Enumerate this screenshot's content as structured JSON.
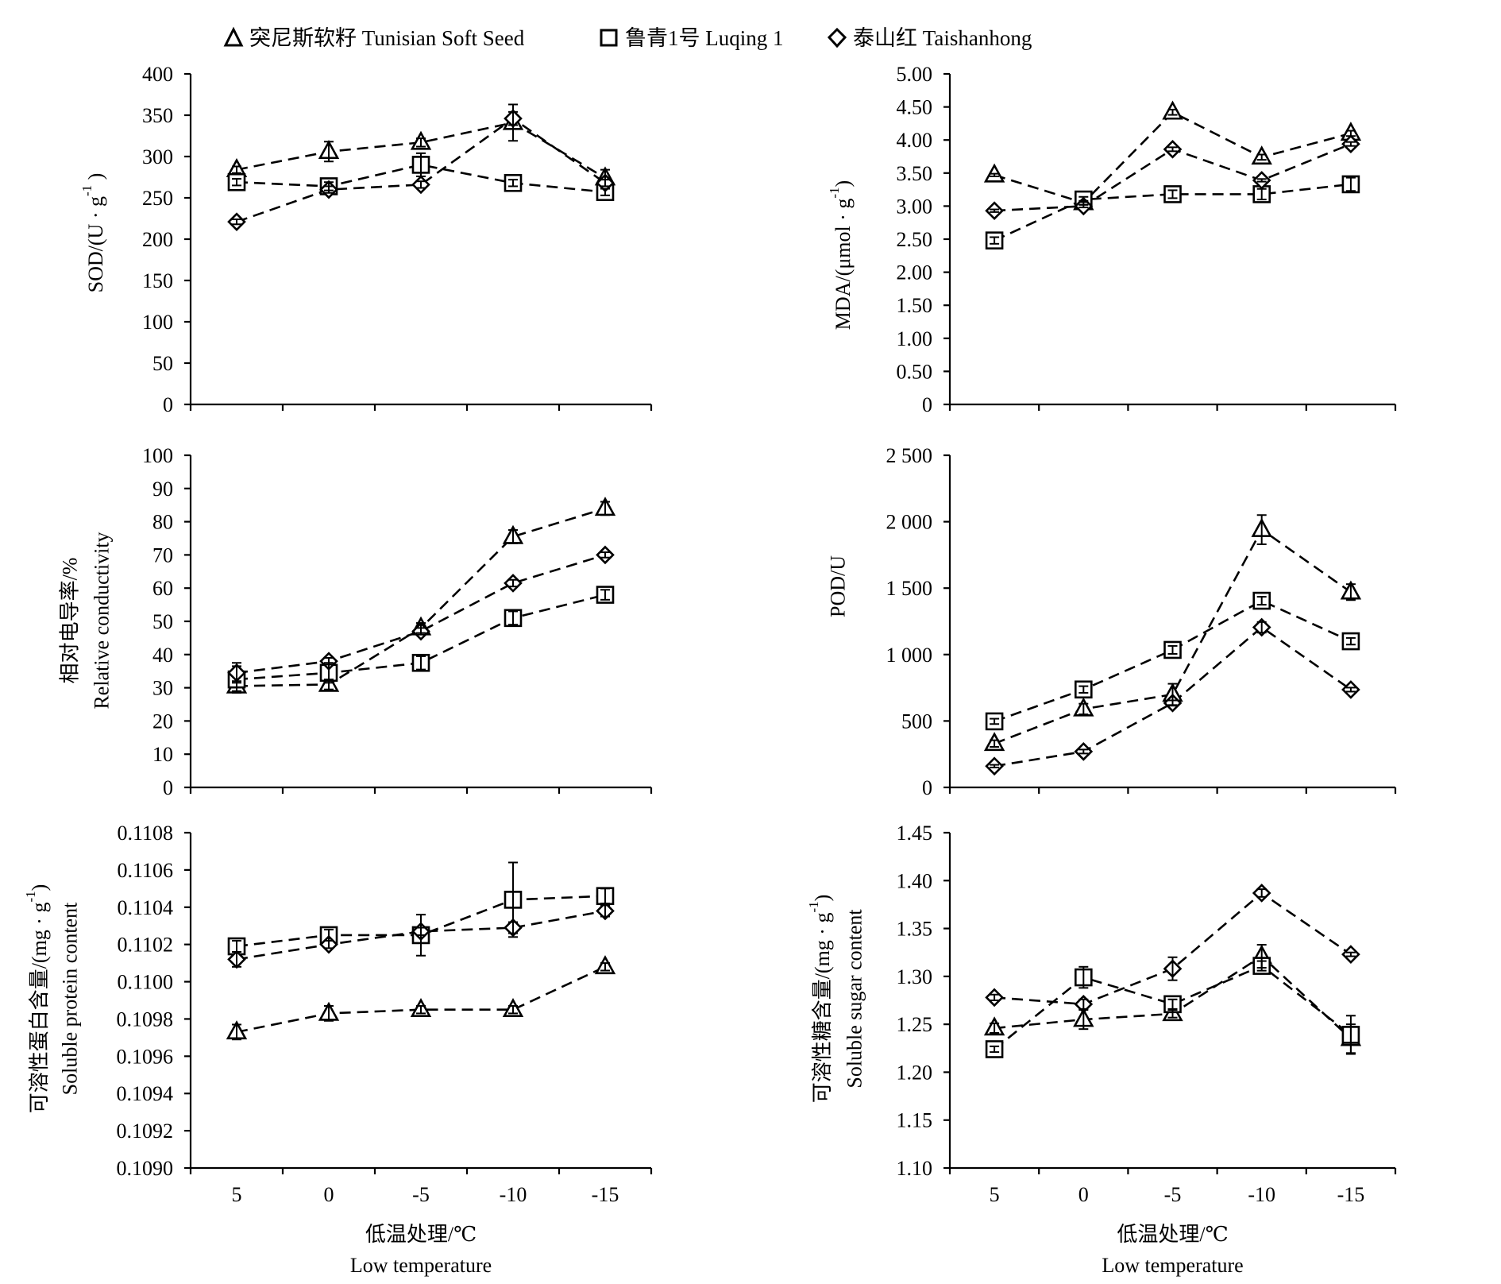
{
  "legend": {
    "position": "top",
    "items": [
      {
        "marker": "triangle",
        "name": "突尼斯软籽 Tunisian Soft Seed"
      },
      {
        "marker": "square",
        "name": "鲁青1号 Luqing 1"
      },
      {
        "marker": "diamond",
        "name": "泰山红 Taishanhong"
      }
    ]
  },
  "chart_data": [
    {
      "type": "line",
      "x": [
        5,
        0,
        -5,
        -10,
        -15
      ],
      "show_x_tick_labels": false,
      "ylabel": [
        {
          "text": "SOD/(U · g",
          "sup": "-1",
          "tail": " )"
        }
      ],
      "ylim": [
        0,
        400
      ],
      "yticks": [
        0,
        50,
        100,
        150,
        200,
        250,
        300,
        350,
        400
      ],
      "ytick_labels": [
        "0",
        "50",
        "100",
        "150",
        "200",
        "250",
        "300",
        "350",
        "400"
      ],
      "grid": false,
      "series": [
        {
          "marker": "triangle",
          "values": [
            284,
            306,
            317,
            341,
            274
          ],
          "errors": [
            4,
            12,
            5,
            22,
            10
          ]
        },
        {
          "marker": "square",
          "values": [
            269,
            264,
            290,
            268,
            257
          ],
          "errors": [
            4,
            5,
            14,
            4,
            4
          ]
        },
        {
          "marker": "diamond",
          "values": [
            221,
            260,
            266,
            346,
            268
          ],
          "errors": [
            3,
            4,
            4,
            8,
            4
          ]
        }
      ]
    },
    {
      "type": "line",
      "x": [
        5,
        0,
        -5,
        -10,
        -15
      ],
      "show_x_tick_labels": false,
      "ylabel": [
        {
          "text": "MDA/(μmol · g",
          "sup": "-1",
          "tail": ")"
        }
      ],
      "ylim": [
        0,
        5
      ],
      "yticks": [
        0,
        0.5,
        1,
        1.5,
        2,
        2.5,
        3,
        3.5,
        4,
        4.5,
        5
      ],
      "ytick_labels": [
        "0",
        "0.50",
        "1.00",
        "1.50",
        "2.00",
        "2.50",
        "3.00",
        "3.50",
        "4.00",
        "4.50",
        "5.00"
      ],
      "grid": false,
      "series": [
        {
          "marker": "triangle",
          "values": [
            3.47,
            3.05,
            4.42,
            3.74,
            4.1
          ],
          "errors": [
            0.02,
            0.03,
            0.04,
            0.04,
            0.04
          ]
        },
        {
          "marker": "square",
          "values": [
            2.48,
            3.1,
            3.18,
            3.18,
            3.33
          ],
          "errors": [
            0.05,
            0.04,
            0.06,
            0.08,
            0.1
          ]
        },
        {
          "marker": "diamond",
          "values": [
            2.93,
            3.0,
            3.86,
            3.39,
            3.94
          ],
          "errors": [
            0.02,
            0.02,
            0.03,
            0.02,
            0.03
          ]
        }
      ]
    },
    {
      "type": "line",
      "x": [
        5,
        0,
        -5,
        -10,
        -15
      ],
      "show_x_tick_labels": false,
      "ylabel": [
        "相对电导率/%",
        "Relative conductivity"
      ],
      "ylim": [
        0,
        100
      ],
      "yticks": [
        0,
        10,
        20,
        30,
        40,
        50,
        60,
        70,
        80,
        90,
        100
      ],
      "ytick_labels": [
        "0",
        "10",
        "20",
        "30",
        "40",
        "50",
        "60",
        "70",
        "80",
        "90",
        "100"
      ],
      "grid": false,
      "series": [
        {
          "marker": "triangle",
          "values": [
            30.5,
            31.0,
            48.0,
            75.5,
            84.0
          ],
          "errors": [
            1.5,
            1.5,
            1.5,
            2.0,
            2.0
          ]
        },
        {
          "marker": "square",
          "values": [
            32.5,
            34.5,
            37.5,
            51.0,
            58.0
          ],
          "errors": [
            4.0,
            3.0,
            2.0,
            2.0,
            1.5
          ]
        },
        {
          "marker": "diamond",
          "values": [
            34.5,
            38.0,
            47.0,
            61.5,
            70.0
          ],
          "errors": [
            3.0,
            1.0,
            1.0,
            1.0,
            0.8
          ]
        }
      ]
    },
    {
      "type": "line",
      "x": [
        5,
        0,
        -5,
        -10,
        -15
      ],
      "show_x_tick_labels": false,
      "ylabel": [
        "POD/U"
      ],
      "ylim": [
        0,
        2500
      ],
      "yticks": [
        0,
        500,
        1000,
        1500,
        2000,
        2500
      ],
      "ytick_labels": [
        "0",
        "500",
        "1 000",
        "1 500",
        "2 000",
        "2 500"
      ],
      "grid": false,
      "series": [
        {
          "marker": "triangle",
          "values": [
            330,
            590,
            700,
            1940,
            1470
          ],
          "errors": [
            25,
            40,
            80,
            110,
            60
          ]
        },
        {
          "marker": "square",
          "values": [
            497,
            737,
            1035,
            1405,
            1100
          ],
          "errors": [
            20,
            25,
            30,
            30,
            25
          ]
        },
        {
          "marker": "diamond",
          "values": [
            160,
            270,
            635,
            1205,
            736
          ],
          "errors": [
            10,
            15,
            20,
            40,
            15
          ]
        }
      ]
    },
    {
      "type": "line",
      "x": [
        5,
        0,
        -5,
        -10,
        -15
      ],
      "show_x_tick_labels": true,
      "xlabel": [
        "低温处理/℃",
        "Low temperature"
      ],
      "ylabel": [
        {
          "text": "可溶性蛋白含量/(mg · g",
          "sup": "-1",
          "tail": ")"
        },
        "Soluble protein content"
      ],
      "ylim": [
        0.109,
        0.1108
      ],
      "yticks": [
        0.109,
        0.1092,
        0.1094,
        0.1096,
        0.1098,
        0.11,
        0.1102,
        0.1104,
        0.1106,
        0.1108
      ],
      "ytick_labels": [
        "0.1090",
        "0.1092",
        "0.1094",
        "0.1096",
        "0.1098",
        "0.1100",
        "0.1102",
        "0.1104",
        "0.1106",
        "0.1108"
      ],
      "grid": false,
      "series": [
        {
          "marker": "triangle",
          "values": [
            0.10973,
            0.10983,
            0.10985,
            0.10985,
            0.11008
          ],
          "errors": [
            4e-05,
            4e-05,
            2e-05,
            2e-05,
            2e-05
          ]
        },
        {
          "marker": "square",
          "values": [
            0.11019,
            0.11025,
            0.11025,
            0.11044,
            0.11046
          ],
          "errors": [
            3e-05,
            3e-05,
            0.00011,
            0.0002,
            4e-05
          ]
        },
        {
          "marker": "diamond",
          "values": [
            0.11012,
            0.1102,
            0.11027,
            0.11029,
            0.11038
          ],
          "errors": [
            4e-05,
            2e-05,
            2e-05,
            3e-05,
            3e-05
          ]
        }
      ]
    },
    {
      "type": "line",
      "x": [
        5,
        0,
        -5,
        -10,
        -15
      ],
      "show_x_tick_labels": true,
      "xlabel": [
        "低温处理/℃",
        "Low temperature"
      ],
      "ylabel": [
        {
          "text": "可溶性糖含量/(mg · g",
          "sup": "-1",
          "tail": ")"
        },
        "Soluble sugar content"
      ],
      "ylim": [
        1.1,
        1.45
      ],
      "yticks": [
        1.1,
        1.15,
        1.2,
        1.25,
        1.3,
        1.35,
        1.4,
        1.45
      ],
      "ytick_labels": [
        "1.10",
        "1.15",
        "1.20",
        "1.25",
        "1.30",
        "1.35",
        "1.40",
        "1.45"
      ],
      "grid": false,
      "series": [
        {
          "marker": "triangle",
          "values": [
            1.246,
            1.255,
            1.261,
            1.321,
            1.235
          ],
          "errors": [
            0.005,
            0.01,
            0.004,
            0.012,
            0.015
          ]
        },
        {
          "marker": "square",
          "values": [
            1.224,
            1.299,
            1.271,
            1.311,
            1.239
          ],
          "errors": [
            0.003,
            0.011,
            0.005,
            0.005,
            0.02
          ]
        },
        {
          "marker": "diamond",
          "values": [
            1.278,
            1.271,
            1.308,
            1.387,
            1.323
          ],
          "errors": [
            0.003,
            0.005,
            0.012,
            0.004,
            0.002
          ]
        }
      ]
    }
  ]
}
